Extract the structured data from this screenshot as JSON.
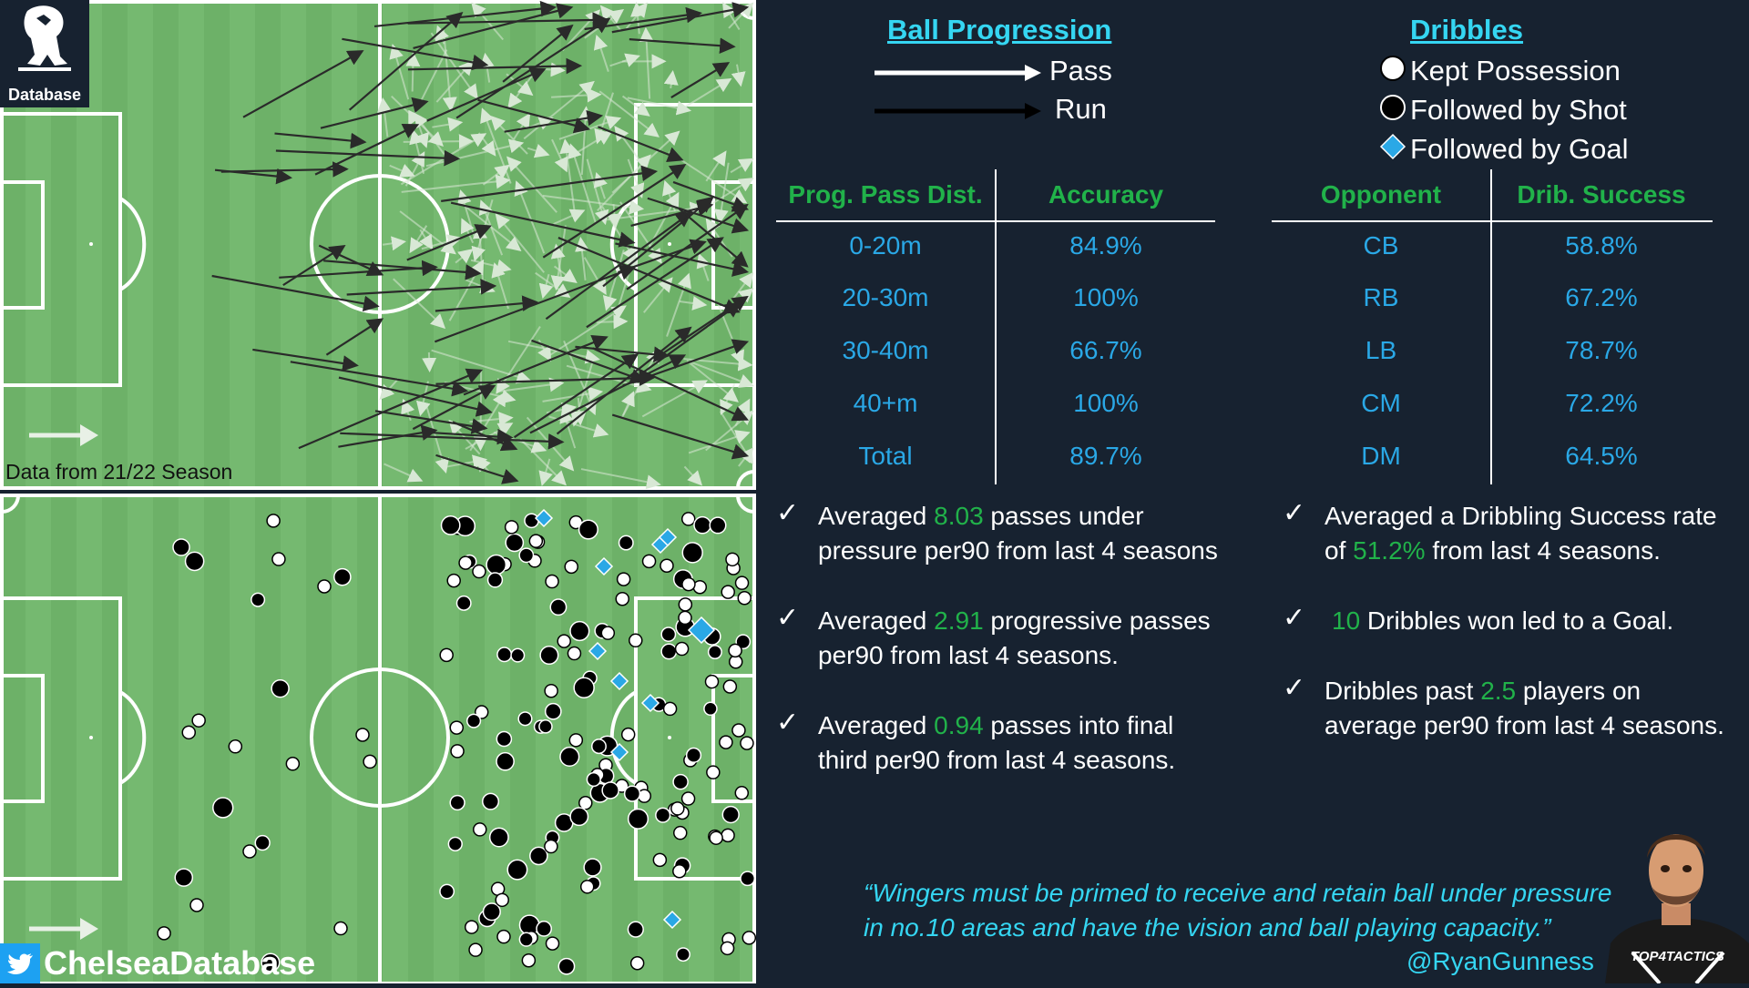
{
  "colors": {
    "background": "#172230",
    "accent": "#35d6f2",
    "green": "#21b24a",
    "blue": "#2aa8e6",
    "pitch": "#6fb46a"
  },
  "logo": {
    "label": "Database"
  },
  "season_label": "Data from 21/22 Season",
  "twitter_handle": "ChelseaDatabase",
  "ball_progression": {
    "title": "Ball Progression",
    "legend": [
      {
        "label": "Pass"
      },
      {
        "label": "Run"
      }
    ]
  },
  "dribbles": {
    "title": "Dribbles",
    "legend": [
      {
        "label": "Kept Possession",
        "icon": "white-circle"
      },
      {
        "label": "Followed by Shot",
        "icon": "black-circle"
      },
      {
        "label": "Followed by Goal",
        "icon": "blue-diamond"
      }
    ]
  },
  "pass_table": {
    "headers": [
      "Prog. Pass Dist.",
      "Accuracy"
    ],
    "rows": [
      [
        "0-20m",
        "84.9%"
      ],
      [
        "20-30m",
        "100%"
      ],
      [
        "30-40m",
        "66.7%"
      ],
      [
        "40+m",
        "100%"
      ],
      [
        "Total",
        "89.7%"
      ]
    ]
  },
  "dribble_table": {
    "headers": [
      "Opponent",
      "Drib. Success"
    ],
    "rows": [
      [
        "CB",
        "58.8%"
      ],
      [
        "RB",
        "67.2%"
      ],
      [
        "LB",
        "78.7%"
      ],
      [
        "CM",
        "72.2%"
      ],
      [
        "DM",
        "64.5%"
      ]
    ]
  },
  "notes_left": [
    {
      "pre": "Averaged ",
      "value": "8.03",
      "post": " passes under",
      "line2": "pressure per90 from last 4 seasons"
    },
    {
      "pre": "Averaged ",
      "value": "2.91",
      "post": " progressive passes",
      "line2": "per90 from last 4 seasons."
    },
    {
      "pre": "Averaged ",
      "value": "0.94",
      "post": " passes into final",
      "line2": "third per90 from last 4 seasons."
    }
  ],
  "notes_right": [
    {
      "pre": "Averaged a Dribbling Success rate",
      "value": "",
      "post": "",
      "line2_pre": "of ",
      "line2_value": "51.2%",
      "line2_post": " from last 4 seasons."
    },
    {
      "pre": "",
      "value": "10",
      "post": " Dribbles won led to a Goal.",
      "line2_pre": "",
      "line2_value": "",
      "line2_post": ""
    },
    {
      "pre": "Dribbles past ",
      "value": "2.5",
      "post": " players on",
      "line2_pre": "average per90 from last 4 seasons.",
      "line2_value": "",
      "line2_post": ""
    }
  ],
  "tick_glyph": "✓",
  "quote": {
    "line1": "“Wingers must be primed to receive and retain ball under pressure",
    "line2": "in no.10 areas and have the vision and ball playing capacity.”",
    "author": "@RyanGunness"
  },
  "avatar_badge": "TOP4TACTICS"
}
